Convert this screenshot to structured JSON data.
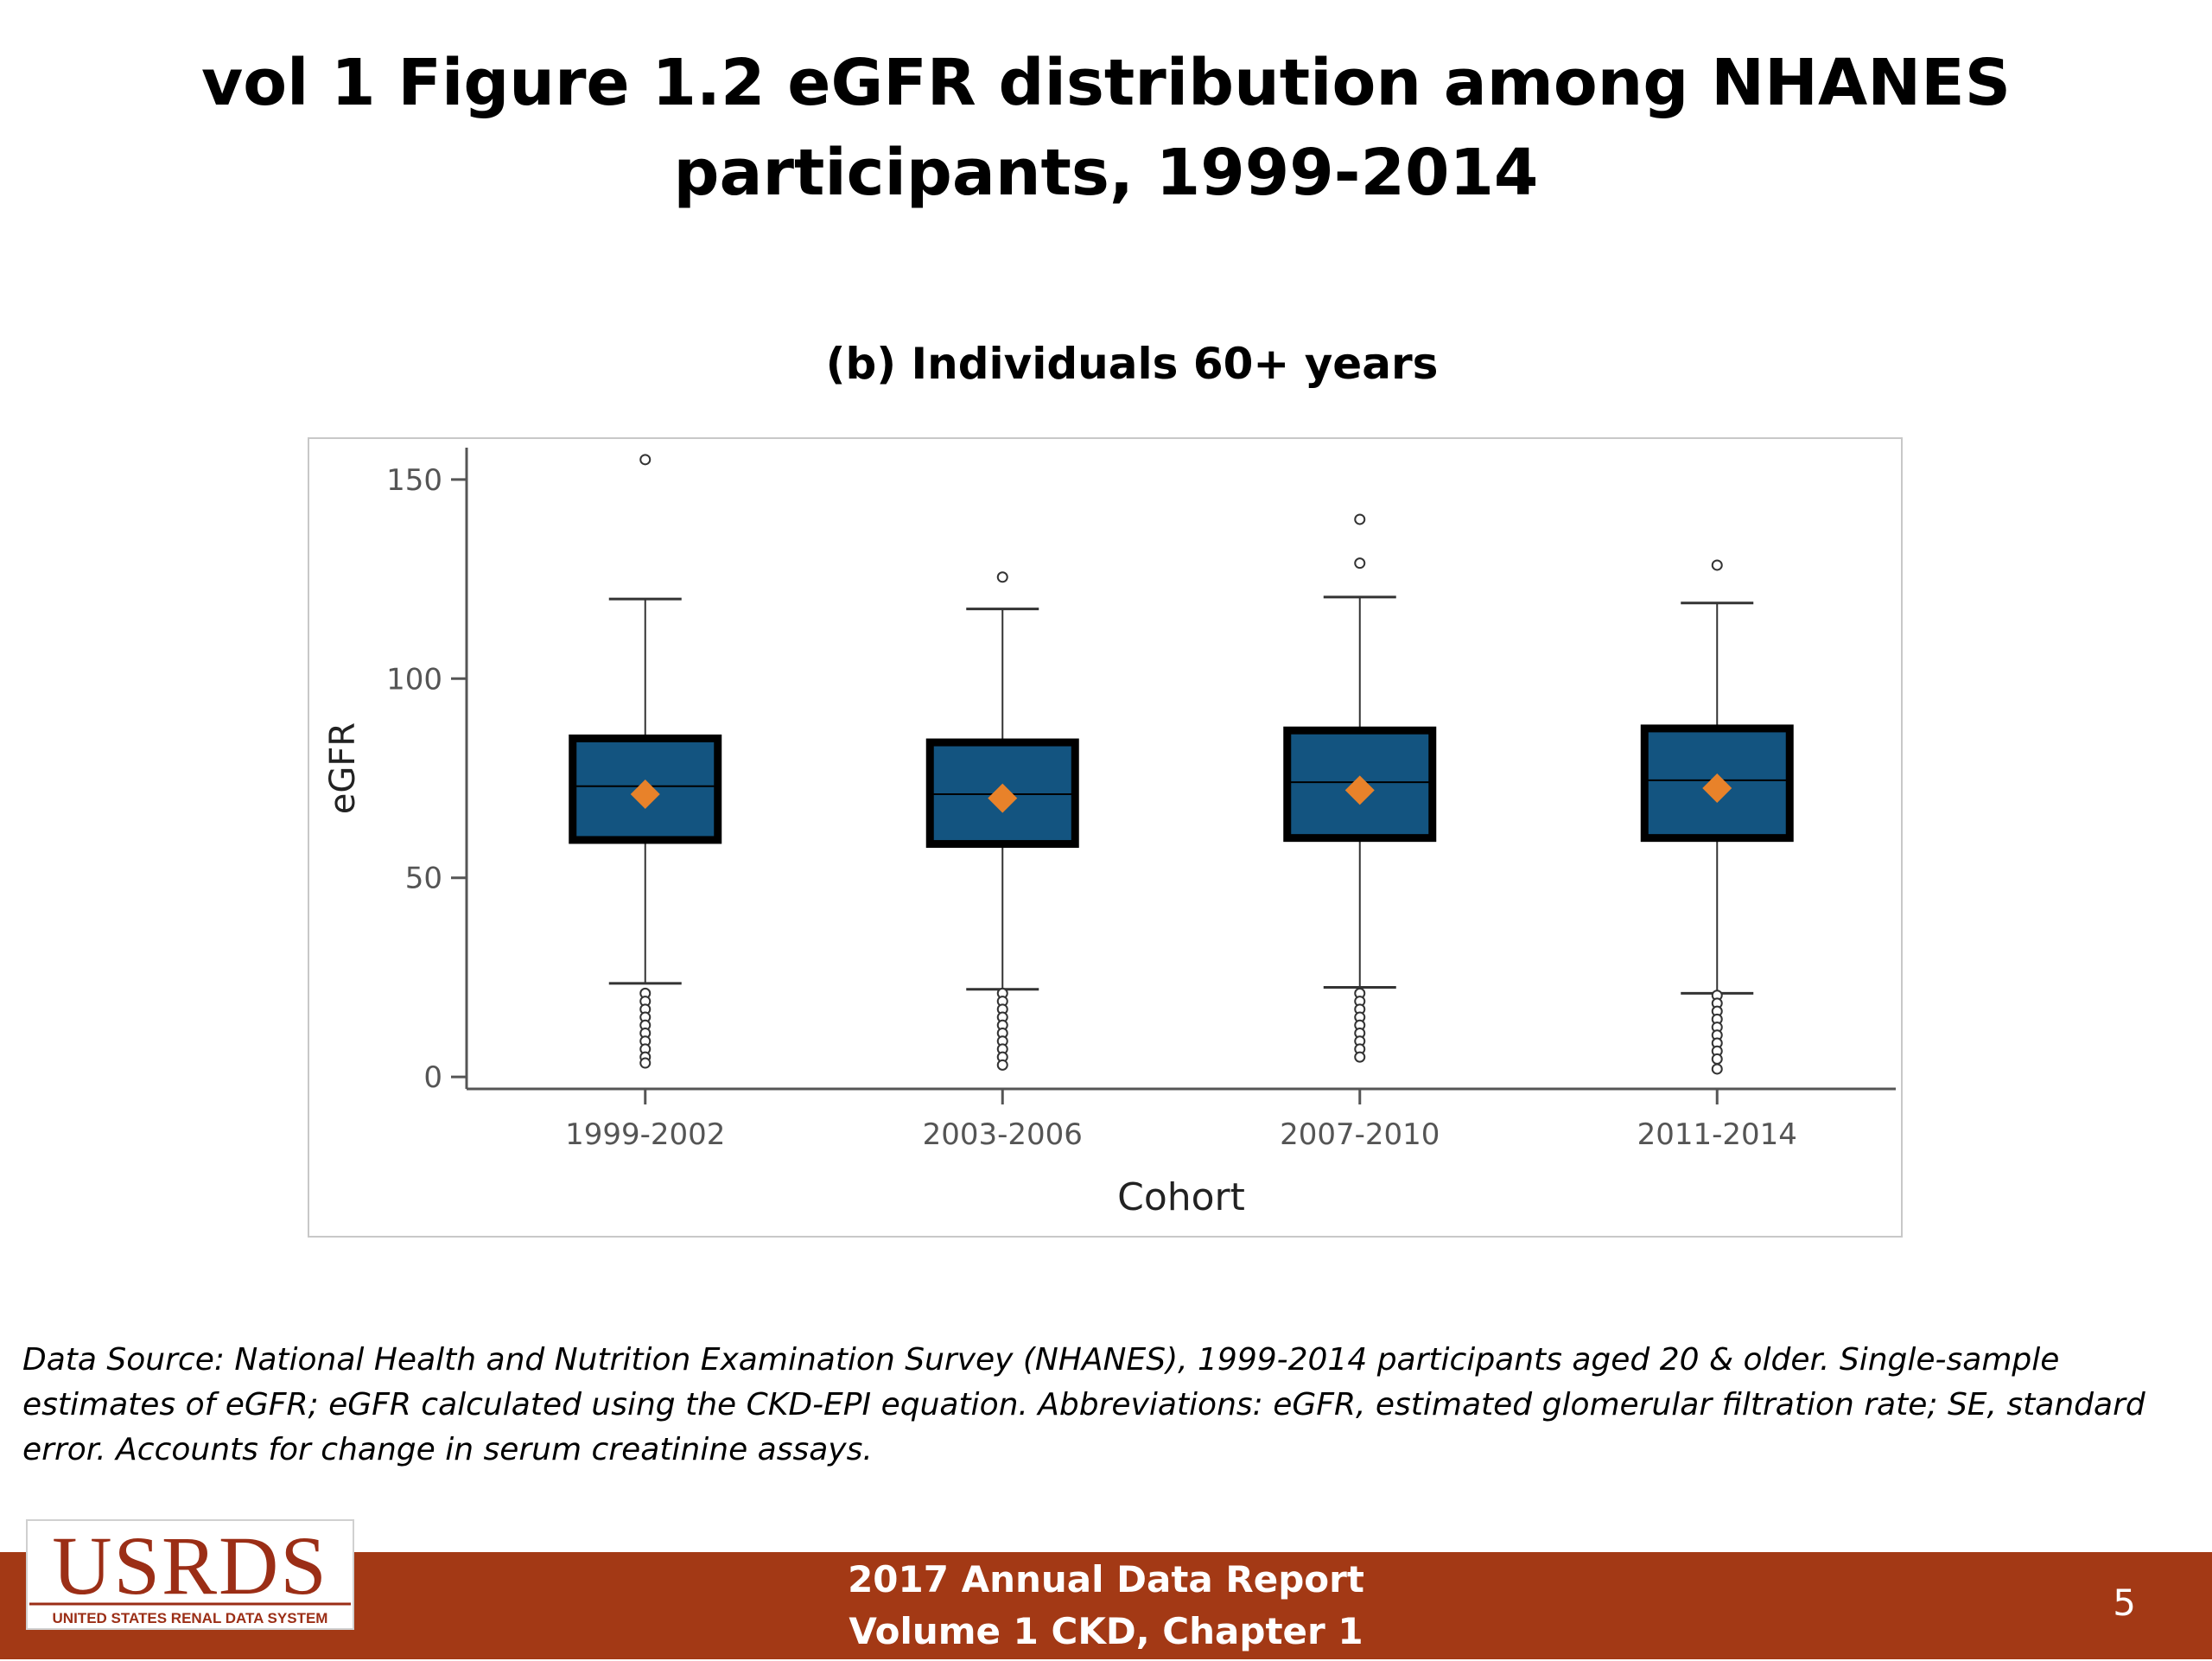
{
  "slide": {
    "title": "vol 1 Figure 1.2 eGFR distribution among NHANES participants, 1999-2014",
    "footnote": "Data Source: National Health and Nutrition Examination Survey (NHANES), 1999-2014 participants aged 20 & older. Single-sample estimates of eGFR; eGFR calculated using the CKD-EPI equation. Abbreviations: eGFR, estimated glomerular filtration rate; SE, standard error. Accounts for change in serum creatinine assays.",
    "footer_line1": "2017 Annual Data Report",
    "footer_line2": "Volume 1 CKD, Chapter 1",
    "page_number": "5",
    "logo_text": "USRDS",
    "logo_subtext": "UNITED STATES RENAL DATA SYSTEM"
  },
  "chart_data": {
    "type": "boxplot",
    "title": "(b) Individuals 60+ years",
    "xlabel": "Cohort",
    "ylabel": "eGFR",
    "ylim": [
      -3,
      158
    ],
    "yticks": [
      0,
      50,
      100,
      150
    ],
    "categories": [
      "1999-2002",
      "2003-2006",
      "2007-2010",
      "2011-2014"
    ],
    "boxes": [
      {
        "category": "1999-2002",
        "whisker_low": 23.5,
        "q1": 59.5,
        "median": 73,
        "mean": 71,
        "q3": 85,
        "whisker_high": 120,
        "outliers": [
          155,
          21,
          19,
          17,
          15,
          13,
          11,
          9,
          7,
          5,
          3.5
        ]
      },
      {
        "category": "2003-2006",
        "whisker_low": 22,
        "q1": 58.5,
        "median": 71,
        "mean": 70,
        "q3": 84,
        "whisker_high": 117.5,
        "outliers": [
          125.5,
          21,
          19,
          17,
          15,
          13,
          11,
          9,
          7,
          5,
          3
        ]
      },
      {
        "category": "2007-2010",
        "whisker_low": 22.5,
        "q1": 60,
        "median": 74,
        "mean": 72,
        "q3": 87,
        "whisker_high": 120.5,
        "outliers": [
          140,
          129,
          21,
          19,
          17,
          15,
          13,
          11,
          9,
          7,
          5
        ]
      },
      {
        "category": "2011-2014",
        "whisker_low": 21,
        "q1": 60,
        "median": 74.5,
        "mean": 72.5,
        "q3": 87.5,
        "whisker_high": 119,
        "outliers": [
          128.5,
          20.5,
          18.5,
          16.5,
          14.5,
          12.5,
          10.5,
          8.5,
          6.5,
          4.5,
          2
        ]
      }
    ],
    "colors": {
      "box_fill": "#135480",
      "box_border": "#000000",
      "mean_marker": "#e8822a",
      "whisker": "#333333"
    },
    "grid": false,
    "legend": "none"
  }
}
